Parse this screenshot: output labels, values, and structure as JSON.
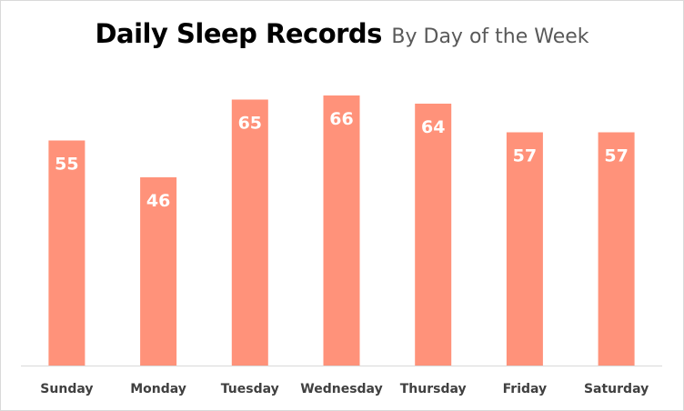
{
  "chart_data": {
    "type": "bar",
    "title": "Daily Sleep Records",
    "subtitle": "By Day of the Week",
    "categories": [
      "Sunday",
      "Monday",
      "Tuesday",
      "Wednesday",
      "Thursday",
      "Friday",
      "Saturday"
    ],
    "values": [
      55,
      46,
      65,
      66,
      64,
      57,
      57
    ],
    "value_labels": [
      "55",
      "46",
      "65",
      "66",
      "64",
      "57",
      "57"
    ],
    "xlabel": "",
    "ylabel": "",
    "ylim": [
      0,
      66
    ],
    "grid": false,
    "legend": "none",
    "bar_color": "#FF927A"
  }
}
